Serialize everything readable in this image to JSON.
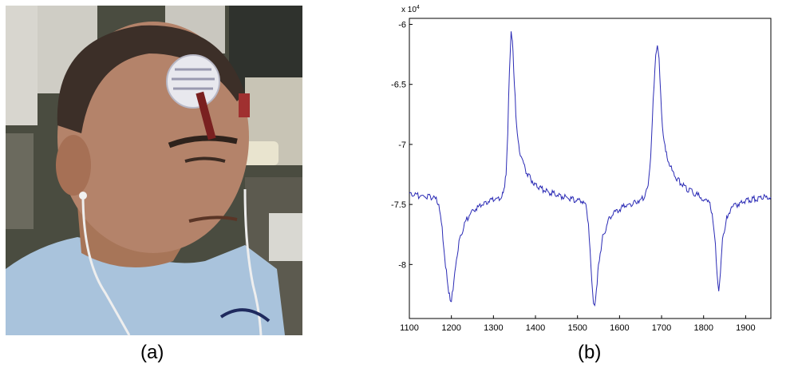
{
  "figure": {
    "caption_a": "(a)",
    "caption_b": "(b)"
  },
  "photo": {
    "subject": "person with electrodes attached near eye and forehead"
  },
  "chart_data": {
    "type": "line",
    "title": "",
    "xlabel": "",
    "ylabel": "",
    "exponent_label_base": "x 10",
    "exponent_label_power": "4",
    "xlim": [
      1100,
      1960
    ],
    "ylim": [
      -8.45,
      -5.95
    ],
    "y_scale_factor": 10000,
    "xticks": [
      1100,
      1200,
      1300,
      1400,
      1500,
      1600,
      1700,
      1800,
      1900
    ],
    "yticks": [
      -6,
      -6.5,
      -7,
      -7.5,
      -8
    ],
    "ytick_labels": [
      "-6",
      "-6.5",
      "-7",
      "-7.5",
      "-8"
    ],
    "grid": false,
    "line_color": "#2b2bb5",
    "series": [
      {
        "x": [
          1100,
          1130,
          1160,
          1170,
          1178,
          1186,
          1192,
          1197,
          1200,
          1204,
          1210,
          1220,
          1235,
          1250,
          1270,
          1290,
          1300,
          1310,
          1320,
          1325,
          1330,
          1334,
          1338,
          1342,
          1345,
          1350,
          1355,
          1362,
          1372,
          1385,
          1400,
          1420,
          1450,
          1480,
          1510,
          1520,
          1526,
          1530,
          1534,
          1538,
          1541,
          1545,
          1550,
          1560,
          1575,
          1590,
          1610,
          1630,
          1650,
          1660,
          1668,
          1674,
          1680,
          1686,
          1690,
          1694,
          1698,
          1702,
          1708,
          1715,
          1725,
          1740,
          1760,
          1790,
          1815,
          1822,
          1828,
          1832,
          1836,
          1840,
          1845,
          1855,
          1870,
          1890,
          1910,
          1930,
          1950,
          1960
        ],
        "y": [
          -7.42,
          -7.43,
          -7.44,
          -7.5,
          -7.7,
          -8.0,
          -8.2,
          -8.28,
          -8.29,
          -8.22,
          -8.0,
          -7.78,
          -7.63,
          -7.55,
          -7.51,
          -7.47,
          -7.46,
          -7.45,
          -7.43,
          -7.38,
          -7.25,
          -6.9,
          -6.4,
          -6.08,
          -6.12,
          -6.5,
          -6.85,
          -7.05,
          -7.18,
          -7.27,
          -7.34,
          -7.38,
          -7.42,
          -7.45,
          -7.47,
          -7.5,
          -7.65,
          -7.9,
          -8.15,
          -8.3,
          -8.32,
          -8.22,
          -8.0,
          -7.77,
          -7.62,
          -7.56,
          -7.52,
          -7.49,
          -7.46,
          -7.43,
          -7.35,
          -7.1,
          -6.65,
          -6.25,
          -6.17,
          -6.3,
          -6.6,
          -6.85,
          -7.02,
          -7.12,
          -7.22,
          -7.3,
          -7.37,
          -7.43,
          -7.5,
          -7.62,
          -7.85,
          -8.1,
          -8.21,
          -8.05,
          -7.8,
          -7.6,
          -7.52,
          -7.48,
          -7.46,
          -7.45,
          -7.44,
          -7.44
        ]
      }
    ]
  }
}
